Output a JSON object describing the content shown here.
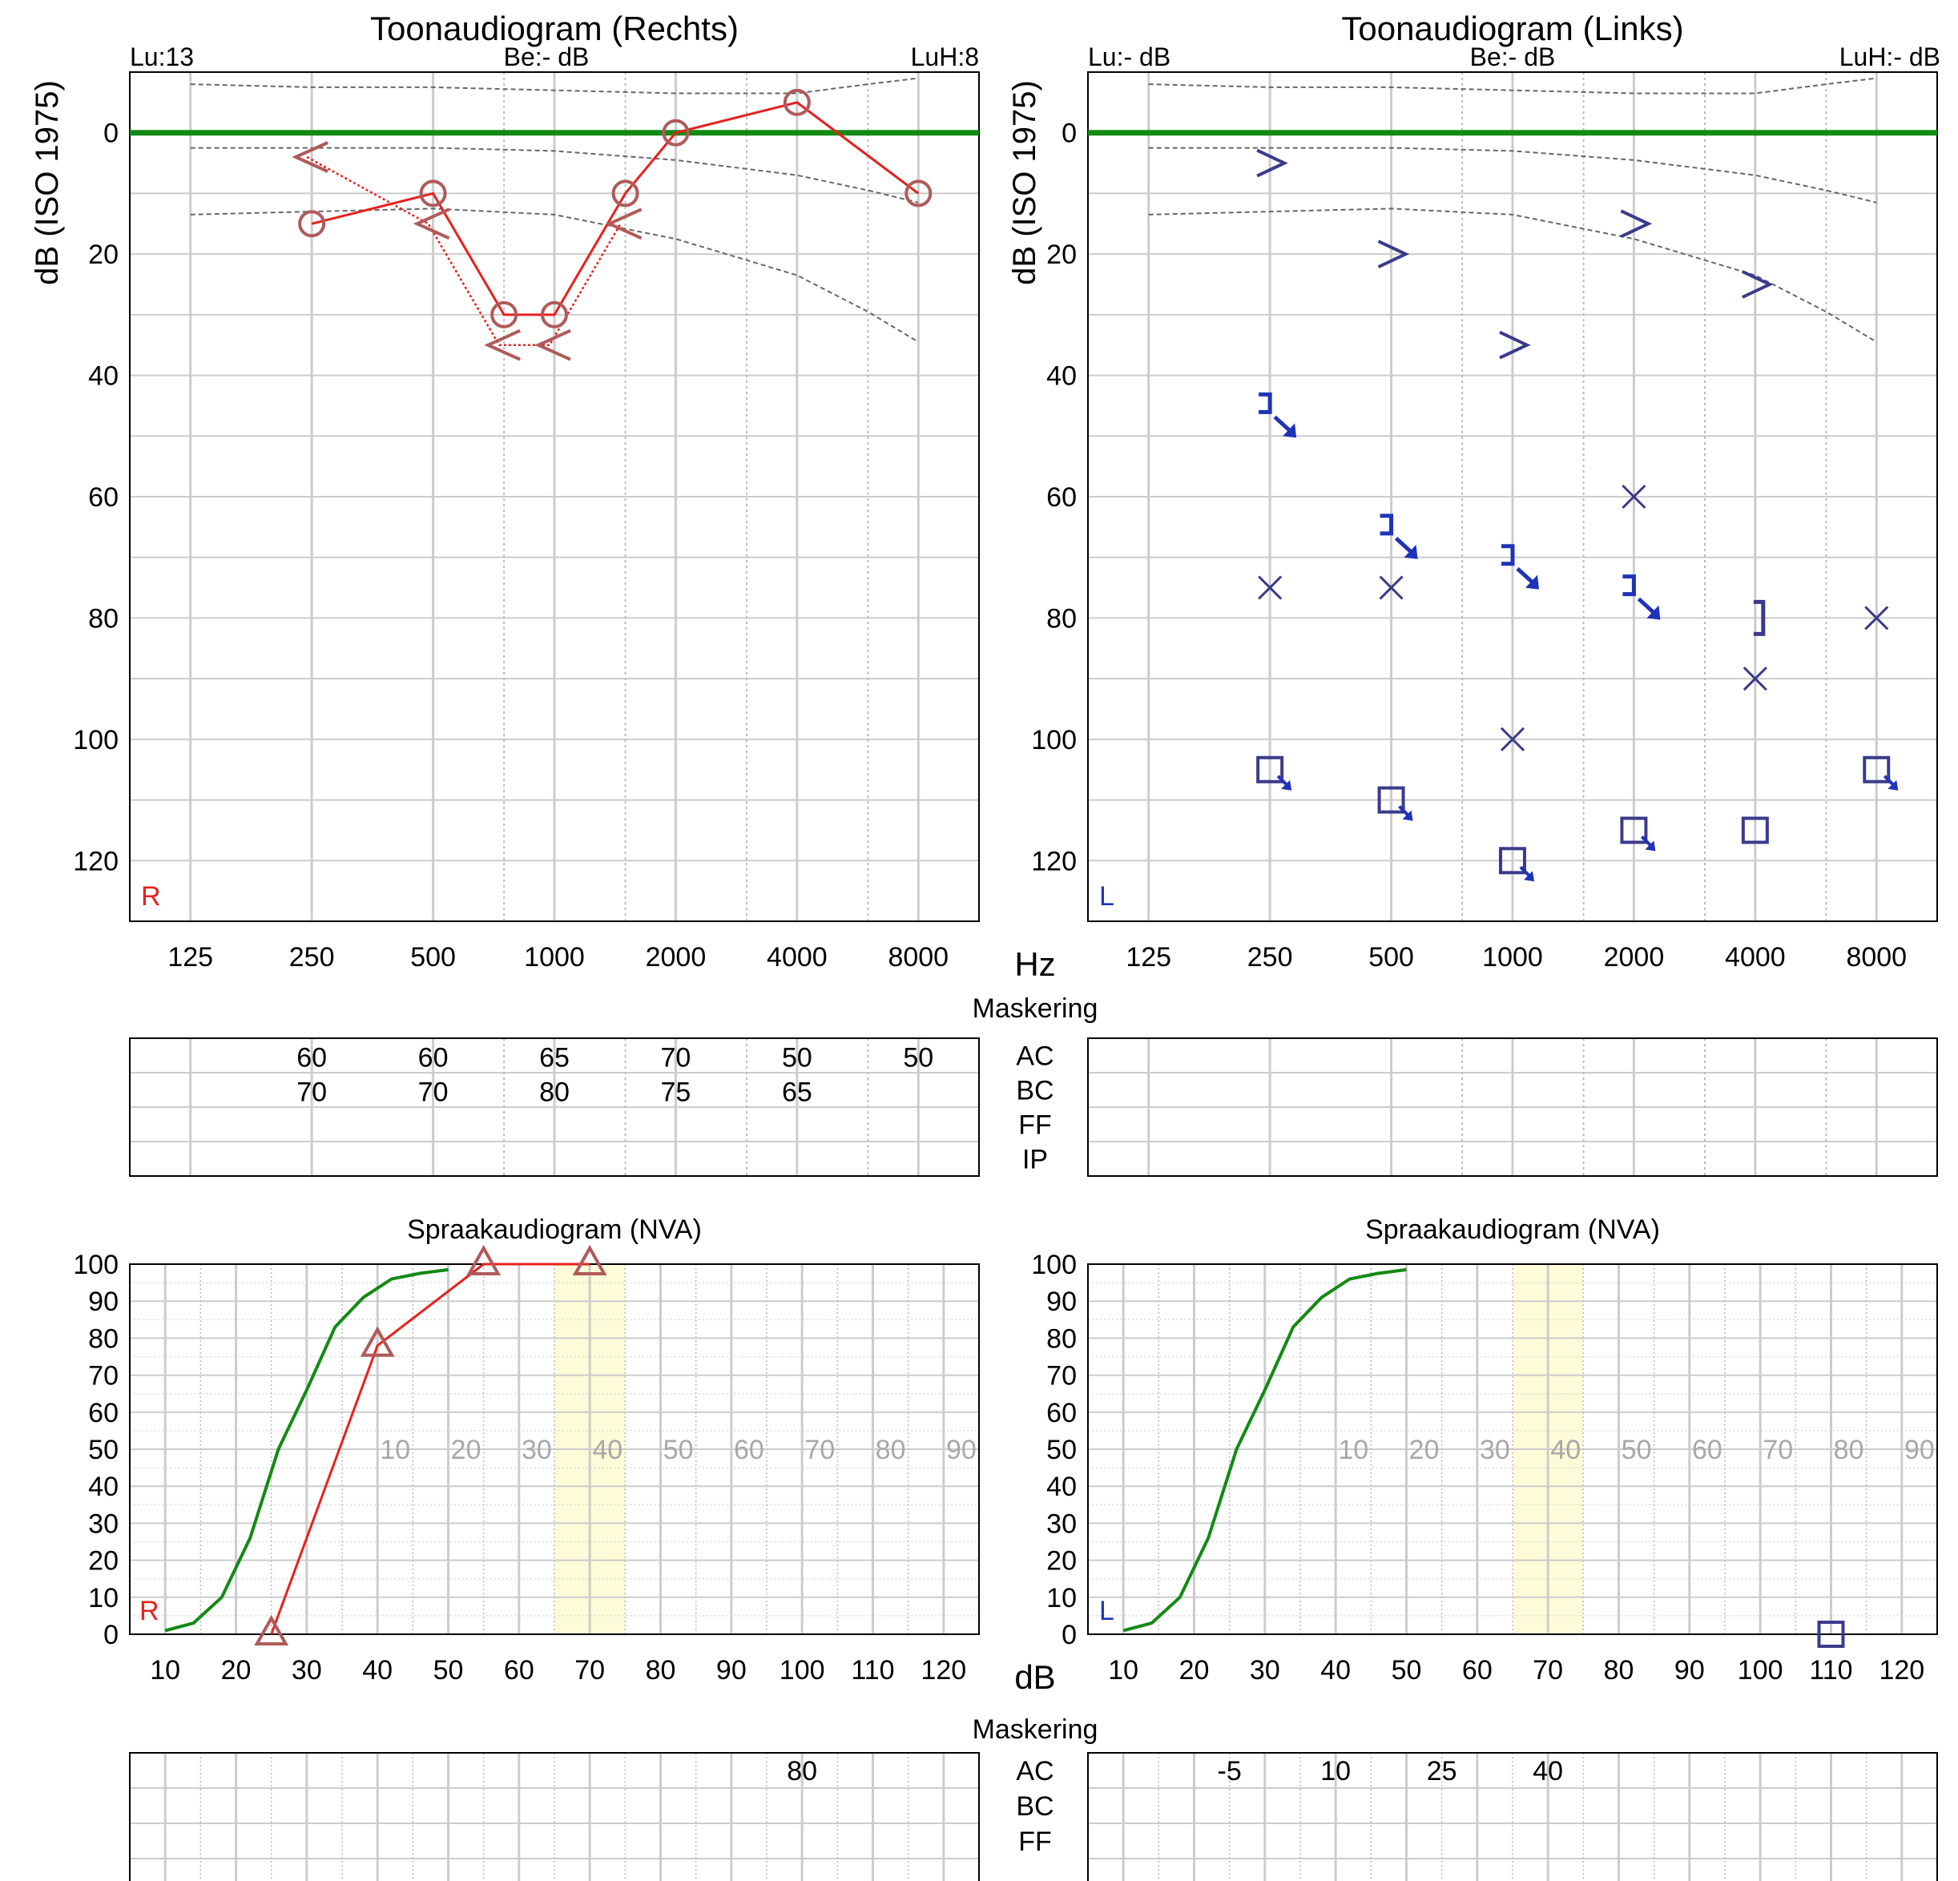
{
  "colors": {
    "right": "#e8201c",
    "right_symbol": "#b05a5a",
    "left": "#3a3a8c",
    "left_strong": "#1f33b8",
    "reference": "#138a13",
    "grid": "#cccccc",
    "band": "#fdfbd8"
  },
  "x_axis_unit_hz": "Hz",
  "x_axis_unit_db": "dB",
  "masking_title": "Maskering",
  "masking_row_labels": [
    "AC",
    "BC",
    "FF",
    "IP"
  ],
  "speech_masking_row_labels": [
    "AC",
    "BC",
    "FF"
  ],
  "tone_right": {
    "title": "Toonaudiogram (Rechts)",
    "lu": "Lu:13",
    "be": "Be:- dB",
    "luh": "LuH:8",
    "ear": "R",
    "ylabel": "dB (ISO 1975)"
  },
  "tone_left": {
    "title": "Toonaudiogram (Links)",
    "lu": "Lu:- dB",
    "be": "Be:- dB",
    "luh": "LuH:- dB",
    "ear": "L",
    "ylabel": "dB (ISO 1975)"
  },
  "speech_right": {
    "title": "Spraakaudiogram (NVA)",
    "ear": "R"
  },
  "speech_left": {
    "title": "Spraakaudiogram (NVA)",
    "ear": "L"
  },
  "masking_tone_right": {
    "AC": [
      [
        "250",
        "60"
      ],
      [
        "500",
        "60"
      ],
      [
        "1000",
        "65"
      ],
      [
        "2000",
        "70"
      ],
      [
        "4000",
        "50"
      ],
      [
        "8000",
        "50"
      ]
    ],
    "BC": [
      [
        "250",
        "70"
      ],
      [
        "500",
        "70"
      ],
      [
        "1000",
        "80"
      ],
      [
        "2000",
        "75"
      ],
      [
        "4000",
        "65"
      ]
    ]
  },
  "masking_speech_right": {
    "AC": [
      [
        "100",
        "80"
      ]
    ]
  },
  "masking_speech_left": {
    "AC": [
      [
        "25",
        "-5"
      ],
      [
        "40",
        "10"
      ],
      [
        "55",
        "25"
      ],
      [
        "70",
        "40"
      ]
    ]
  },
  "chart_data": [
    {
      "type": "line",
      "title": "Toonaudiogram (Rechts)",
      "ylabel": "dB (ISO 1975)",
      "xlabel": "Hz",
      "x_ticks": [
        "125",
        "250",
        "500",
        "1000",
        "2000",
        "4000",
        "8000"
      ],
      "y_ticks": [
        "0",
        "20",
        "40",
        "60",
        "80",
        "100",
        "120"
      ],
      "ylim": [
        130,
        -10
      ],
      "x_scale": "log2",
      "reference_line_db": 0,
      "normal_range_curves": [
        [
          [
            125,
            -8
          ],
          [
            250,
            -7.5
          ],
          [
            500,
            -7.5
          ],
          [
            1000,
            -7
          ],
          [
            2000,
            -6.5
          ],
          [
            4000,
            -6.5
          ],
          [
            6000,
            -8
          ],
          [
            8000,
            -9
          ]
        ],
        [
          [
            125,
            2.5
          ],
          [
            250,
            2.5
          ],
          [
            500,
            2.5
          ],
          [
            1000,
            3
          ],
          [
            2000,
            4.5
          ],
          [
            4000,
            7
          ],
          [
            6000,
            9.5
          ],
          [
            8000,
            11.5
          ]
        ],
        [
          [
            125,
            13.5
          ],
          [
            250,
            13
          ],
          [
            500,
            12.5
          ],
          [
            1000,
            13.5
          ],
          [
            2000,
            17.5
          ],
          [
            4000,
            23.5
          ],
          [
            6000,
            29.5
          ],
          [
            8000,
            34.5
          ]
        ]
      ],
      "series": [
        {
          "marker": "circle",
          "style": "solid",
          "points": [
            [
              250,
              15
            ],
            [
              500,
              10
            ],
            [
              750,
              30
            ],
            [
              1000,
              30
            ],
            [
              1500,
              10
            ],
            [
              2000,
              0
            ],
            [
              4000,
              -5
            ],
            [
              8000,
              10
            ]
          ]
        },
        {
          "marker": "less-than",
          "style": "dotted",
          "points": [
            [
              250,
              4
            ],
            [
              500,
              15
            ],
            [
              750,
              35
            ],
            [
              1000,
              35
            ],
            [
              1500,
              15
            ]
          ]
        }
      ]
    },
    {
      "type": "scatter",
      "title": "Toonaudiogram (Links)",
      "ylabel": "dB (ISO 1975)",
      "xlabel": "Hz",
      "x_ticks": [
        "125",
        "250",
        "500",
        "1000",
        "2000",
        "4000",
        "8000"
      ],
      "y_ticks": [
        "0",
        "20",
        "40",
        "60",
        "80",
        "100",
        "120"
      ],
      "ylim": [
        130,
        -10
      ],
      "x_scale": "log2",
      "reference_line_db": 0,
      "normal_range_curves": [
        [
          [
            125,
            -8
          ],
          [
            250,
            -7.5
          ],
          [
            500,
            -7.5
          ],
          [
            1000,
            -7
          ],
          [
            2000,
            -6.5
          ],
          [
            4000,
            -6.5
          ],
          [
            6000,
            -8
          ],
          [
            8000,
            -9
          ]
        ],
        [
          [
            125,
            2.5
          ],
          [
            250,
            2.5
          ],
          [
            500,
            2.5
          ],
          [
            1000,
            3
          ],
          [
            2000,
            4.5
          ],
          [
            4000,
            7
          ],
          [
            6000,
            9.5
          ],
          [
            8000,
            11.5
          ]
        ],
        [
          [
            125,
            13.5
          ],
          [
            250,
            13
          ],
          [
            500,
            12.5
          ],
          [
            1000,
            13.5
          ],
          [
            2000,
            17.5
          ],
          [
            4000,
            23.5
          ],
          [
            6000,
            29.5
          ],
          [
            8000,
            34.5
          ]
        ]
      ],
      "series": [
        {
          "marker": "greater-than",
          "points": [
            [
              250,
              5
            ],
            [
              500,
              20
            ],
            [
              1000,
              35
            ],
            [
              2000,
              15
            ],
            [
              4000,
              25
            ]
          ]
        },
        {
          "marker": "bracket-arrow",
          "points": [
            [
              250,
              45
            ],
            [
              500,
              65
            ],
            [
              1000,
              70
            ],
            [
              2000,
              75
            ]
          ]
        },
        {
          "marker": "bracket",
          "points": [
            [
              4000,
              80
            ]
          ]
        },
        {
          "marker": "cross",
          "points": [
            [
              250,
              75
            ],
            [
              500,
              75
            ],
            [
              1000,
              100
            ],
            [
              2000,
              60
            ],
            [
              4000,
              90
            ],
            [
              8000,
              80
            ]
          ]
        },
        {
          "marker": "square-arrow",
          "points": [
            [
              250,
              105
            ],
            [
              500,
              110
            ],
            [
              1000,
              120
            ],
            [
              2000,
              115
            ],
            [
              8000,
              105
            ]
          ]
        },
        {
          "marker": "square",
          "points": [
            [
              4000,
              115
            ]
          ]
        }
      ]
    },
    {
      "type": "line",
      "title": "Spraakaudiogram (NVA)",
      "xlabel": "dB",
      "x_ticks": [
        "10",
        "20",
        "30",
        "40",
        "50",
        "60",
        "70",
        "80",
        "90",
        "100",
        "110",
        "120"
      ],
      "x_ticks_inner": [
        "10",
        "20",
        "30",
        "40",
        "50",
        "60",
        "70",
        "80",
        "90"
      ],
      "y_ticks": [
        "0",
        "10",
        "20",
        "30",
        "40",
        "50",
        "60",
        "70",
        "80",
        "90",
        "100"
      ],
      "xlim": [
        5,
        125
      ],
      "ylim": [
        0,
        100
      ],
      "highlight_band_x": [
        65,
        75
      ],
      "reference_curve": [
        [
          10,
          1
        ],
        [
          14,
          3
        ],
        [
          18,
          10
        ],
        [
          22,
          26
        ],
        [
          26,
          50
        ],
        [
          30,
          66
        ],
        [
          34,
          83
        ],
        [
          38,
          91
        ],
        [
          42,
          96
        ],
        [
          46,
          97.5
        ],
        [
          50,
          98.5
        ]
      ],
      "series": [
        {
          "marker": "triangle",
          "points": [
            [
              25,
              0
            ],
            [
              40,
              78
            ],
            [
              55,
              100
            ],
            [
              70,
              100
            ]
          ]
        }
      ]
    },
    {
      "type": "line",
      "title": "Spraakaudiogram (NVA)",
      "xlabel": "dB",
      "x_ticks": [
        "10",
        "20",
        "30",
        "40",
        "50",
        "60",
        "70",
        "80",
        "90",
        "100",
        "110",
        "120"
      ],
      "x_ticks_inner": [
        "10",
        "20",
        "30",
        "40",
        "50",
        "60",
        "70",
        "80",
        "90"
      ],
      "y_ticks": [
        "0",
        "10",
        "20",
        "30",
        "40",
        "50",
        "60",
        "70",
        "80",
        "90",
        "100"
      ],
      "xlim": [
        5,
        125
      ],
      "ylim": [
        0,
        100
      ],
      "highlight_band_x": [
        65,
        75
      ],
      "reference_curve": [
        [
          10,
          1
        ],
        [
          14,
          3
        ],
        [
          18,
          10
        ],
        [
          22,
          26
        ],
        [
          26,
          50
        ],
        [
          30,
          66
        ],
        [
          34,
          83
        ],
        [
          38,
          91
        ],
        [
          42,
          96
        ],
        [
          46,
          97.5
        ],
        [
          50,
          98.5
        ]
      ],
      "series": [
        {
          "marker": "square",
          "points": [
            [
              110,
              0
            ]
          ]
        }
      ]
    }
  ]
}
